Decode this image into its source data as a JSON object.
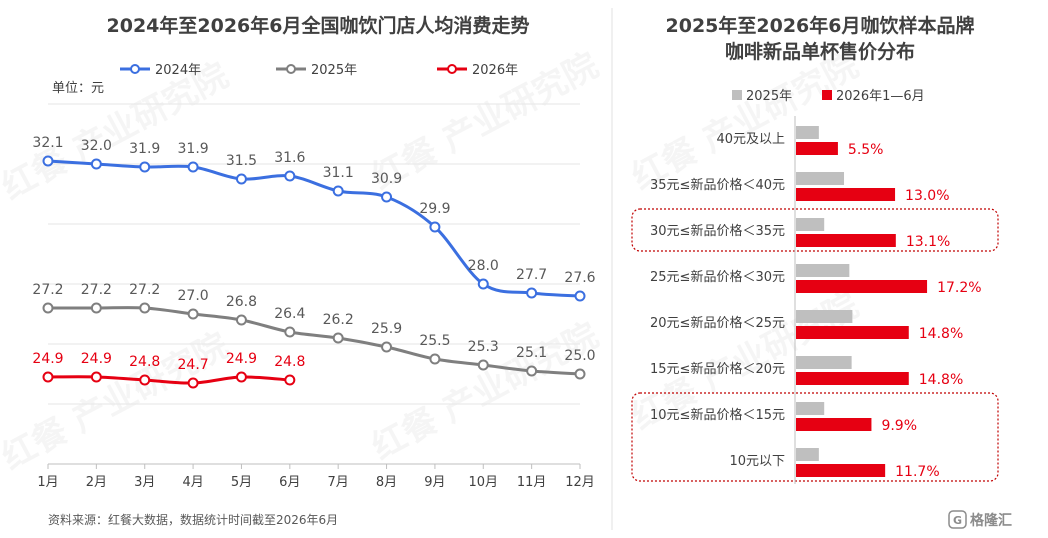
{
  "charts": {
    "line": {
      "title": "2024年至2026年6月全国咖饮门店人均消费走势",
      "unit": "单位：元",
      "ylim": [
        22,
        34
      ],
      "categories": [
        "1月",
        "2月",
        "3月",
        "4月",
        "5月",
        "6月",
        "7月",
        "8月",
        "9月",
        "10月",
        "11月",
        "12月"
      ],
      "series": [
        {
          "name": "2024年",
          "color": "#3B6FE0",
          "label_color": "#595959",
          "values": [
            32.1,
            32.0,
            31.9,
            31.9,
            31.5,
            31.6,
            31.1,
            30.9,
            29.9,
            28.0,
            27.7,
            27.6
          ]
        },
        {
          "name": "2025年",
          "color": "#7F7F7F",
          "label_color": "#595959",
          "values": [
            27.2,
            27.2,
            27.2,
            27.0,
            26.8,
            26.4,
            26.2,
            25.9,
            25.5,
            25.3,
            25.1,
            25.0
          ]
        },
        {
          "name": "2026年",
          "color": "#E60012",
          "label_color": "#E60012",
          "values": [
            24.9,
            24.9,
            24.8,
            24.7,
            24.9,
            24.8
          ]
        }
      ]
    },
    "bar": {
      "title_line1": "2025年至2026年6月咖饮样本品牌",
      "title_line2": "咖啡新品单杯售价分布",
      "categories": [
        "40元及以上",
        "35元≤新品价格＜40元",
        "30元≤新品价格＜35元",
        "25元≤新品价格＜30元",
        "20元≤新品价格＜25元",
        "15元≤新品价格＜20元",
        "10元≤新品价格＜15元",
        "10元以下"
      ],
      "series": [
        {
          "name": "2025年",
          "color": "#BFBFBF",
          "values": [
            3.0,
            6.3,
            3.7,
            7.0,
            7.4,
            7.3,
            3.7,
            3.0
          ]
        },
        {
          "name": "2026年1—6月",
          "color": "#E60012",
          "values": [
            5.5,
            13.0,
            13.1,
            17.2,
            14.8,
            14.8,
            9.9,
            11.7
          ]
        }
      ],
      "value_labels": [
        "5.5%",
        "13.0%",
        "13.1%",
        "17.2%",
        "14.8%",
        "14.8%",
        "9.9%",
        "11.7%"
      ],
      "highlight_color": "#C00000"
    }
  },
  "footer": {
    "source": "资料来源：红餐大数据，数据统计时间截至2026年6月"
  },
  "watermark": {
    "brand": "红餐",
    "text": "产业研究院"
  },
  "logo": {
    "text": "格隆汇"
  },
  "colors": {
    "title": "#404040",
    "grid": "#E6E6E6",
    "axis": "#BFBFBF",
    "divider": "#E0E0E0"
  }
}
